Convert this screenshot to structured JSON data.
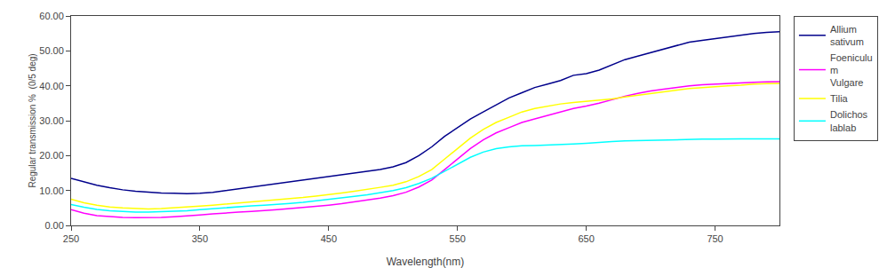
{
  "chart_data": {
    "type": "line",
    "xlabel": "Wavelength(nm)",
    "ylabel": "Regular transmission %  (0/5 deg)",
    "xlim": [
      250,
      800
    ],
    "ylim": [
      0.0,
      60.0
    ],
    "xticks": [
      250,
      350,
      450,
      550,
      650,
      750
    ],
    "yticks": [
      {
        "value": 0.0,
        "label": "0.00"
      },
      {
        "value": 10.0,
        "label": "10.00"
      },
      {
        "value": 20.0,
        "label": "20.00"
      },
      {
        "value": 30.0,
        "label": "30.00"
      },
      {
        "value": 40.0,
        "label": "40.00"
      },
      {
        "value": 50.0,
        "label": "50.00"
      },
      {
        "value": 60.0,
        "label": "60.00"
      }
    ],
    "grid": false,
    "legend": "right",
    "x": [
      250,
      260,
      270,
      280,
      290,
      300,
      310,
      320,
      330,
      340,
      350,
      360,
      370,
      380,
      390,
      400,
      410,
      420,
      430,
      440,
      450,
      460,
      470,
      480,
      490,
      500,
      510,
      520,
      530,
      540,
      550,
      560,
      570,
      580,
      590,
      600,
      610,
      620,
      630,
      640,
      650,
      660,
      670,
      680,
      690,
      700,
      710,
      720,
      730,
      740,
      750,
      760,
      770,
      780,
      790,
      800
    ],
    "series": [
      {
        "name": "Allium\nsativum",
        "color": "#00008B",
        "values": [
          13.5,
          12.5,
          11.5,
          10.8,
          10.2,
          9.8,
          9.5,
          9.3,
          9.2,
          9.1,
          9.2,
          9.5,
          10.0,
          10.5,
          11.0,
          11.5,
          12.0,
          12.5,
          13.0,
          13.5,
          14.0,
          14.5,
          15.0,
          15.5,
          16.0,
          16.8,
          18.0,
          20.0,
          22.5,
          25.5,
          28.0,
          30.5,
          32.5,
          34.5,
          36.5,
          38.0,
          39.5,
          40.5,
          41.5,
          43.0,
          43.5,
          44.5,
          46.0,
          47.5,
          48.5,
          49.5,
          50.5,
          51.5,
          52.5,
          53.0,
          53.5,
          54.0,
          54.5,
          55.0,
          55.3,
          55.5
        ]
      },
      {
        "name": "Foeniculu\nm\nVulgare",
        "color": "#FF00FF",
        "values": [
          4.5,
          3.5,
          2.8,
          2.5,
          2.3,
          2.2,
          2.2,
          2.3,
          2.5,
          2.7,
          3.0,
          3.3,
          3.6,
          3.8,
          4.0,
          4.2,
          4.5,
          4.8,
          5.1,
          5.4,
          5.8,
          6.2,
          6.7,
          7.2,
          7.8,
          8.5,
          9.5,
          11.0,
          13.0,
          16.0,
          19.0,
          22.0,
          24.5,
          26.5,
          28.0,
          29.5,
          30.5,
          31.5,
          32.5,
          33.5,
          34.2,
          35.0,
          36.0,
          37.0,
          37.8,
          38.5,
          39.0,
          39.5,
          40.0,
          40.3,
          40.5,
          40.7,
          40.9,
          41.0,
          41.1,
          41.2
        ]
      },
      {
        "name": "Tilia",
        "color": "#FFFF00",
        "values": [
          7.5,
          6.5,
          5.8,
          5.3,
          5.0,
          4.8,
          4.7,
          4.8,
          5.0,
          5.2,
          5.5,
          5.8,
          6.1,
          6.4,
          6.7,
          7.0,
          7.3,
          7.6,
          8.0,
          8.4,
          8.8,
          9.3,
          9.8,
          10.3,
          10.9,
          11.5,
          12.5,
          14.0,
          16.0,
          19.0,
          22.0,
          25.0,
          27.5,
          29.5,
          31.0,
          32.5,
          33.5,
          34.2,
          34.8,
          35.2,
          35.5,
          35.8,
          36.2,
          36.8,
          37.3,
          37.8,
          38.3,
          38.8,
          39.2,
          39.5,
          39.8,
          40.0,
          40.2,
          40.5,
          40.6,
          40.7
        ]
      },
      {
        "name": "Dolichos\nlablab",
        "color": "#00FFFF",
        "values": [
          6.0,
          5.2,
          4.6,
          4.2,
          4.0,
          3.8,
          3.8,
          3.9,
          4.0,
          4.2,
          4.5,
          4.8,
          5.1,
          5.4,
          5.6,
          5.8,
          6.0,
          6.3,
          6.6,
          7.0,
          7.4,
          7.8,
          8.3,
          8.8,
          9.4,
          10.0,
          10.8,
          12.0,
          13.5,
          15.5,
          17.5,
          19.5,
          21.0,
          22.0,
          22.5,
          22.8,
          22.9,
          23.0,
          23.1,
          23.3,
          23.5,
          23.8,
          24.0,
          24.2,
          24.3,
          24.4,
          24.5,
          24.6,
          24.7,
          24.7,
          24.7,
          24.8,
          24.8,
          24.8,
          24.8,
          24.8
        ]
      }
    ]
  }
}
